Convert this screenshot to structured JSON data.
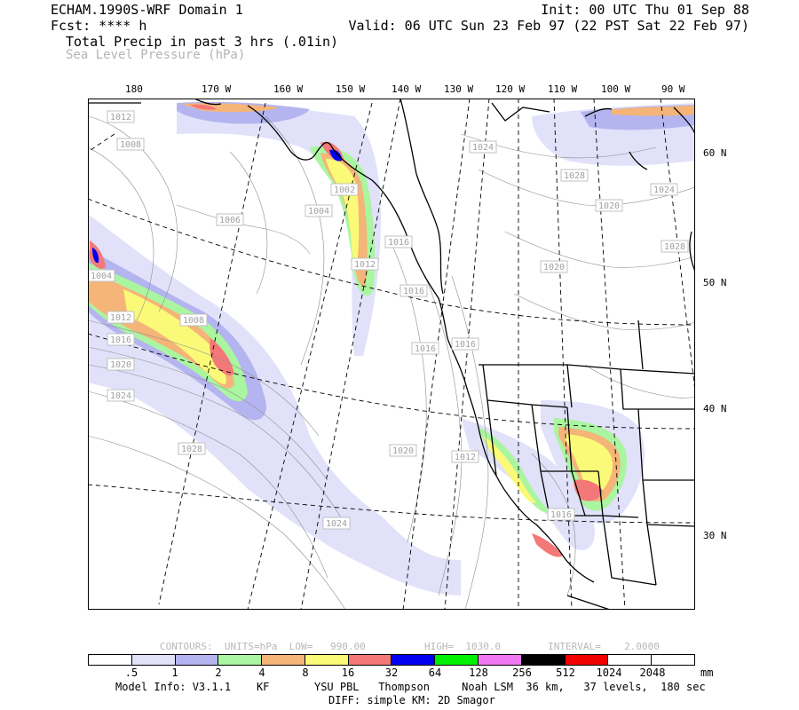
{
  "header": {
    "title": "ECHAM.1990S-WRF Domain 1",
    "fcst": "Fcst: **** h",
    "init": "Init: 00 UTC Thu 01 Sep 88",
    "valid": "Valid: 06 UTC Sun 23 Feb 97 (22 PST Sat 22 Feb 97)",
    "field_primary": "Total Precip in past 3 hrs (.01in)",
    "field_secondary": "Sea Level Pressure (hPa)"
  },
  "map": {
    "longitude_labels": [
      "180",
      "170 W",
      "160 W",
      "150 W",
      "140 W",
      "130 W",
      "120 W",
      "110 W",
      "100 W",
      "90 W"
    ],
    "latitude_labels": [
      "60 N",
      "50 N",
      "40 N",
      "30 N"
    ],
    "isobar_labels": [
      "1012",
      "1008",
      "1006",
      "1004",
      "1002",
      "1024",
      "1028",
      "1020",
      "1024",
      "1028",
      "1016",
      "1012",
      "1004",
      "1020",
      "1016",
      "1012",
      "1008",
      "1016",
      "1020",
      "1024",
      "1028",
      "1016",
      "1020",
      "1012",
      "1024",
      "1016",
      "1016"
    ],
    "precip_colors": {
      "light_lavender": "#e1e1fa",
      "lavender": "#b4b4f0",
      "light_green": "#aaf5a0",
      "peach": "#f5b478",
      "yellow": "#fafa78",
      "salmon": "#f57878",
      "blue": "#0000f0",
      "green": "#00f000",
      "red": "#f00000"
    }
  },
  "contours": {
    "text": "CONTOURS:  UNITS=hPa  LOW=   990.00          HIGH=  1030.0        INTERVAL=    2.0000"
  },
  "colorbar": {
    "colors": [
      "#ffffff",
      "#e1e1fa",
      "#b4b4f0",
      "#aaf5a0",
      "#f5b478",
      "#fafa78",
      "#f57878",
      "#0000f0",
      "#00f000",
      "#f078f0",
      "#000000",
      "#f00000",
      "#ffffff",
      "#ffffff"
    ],
    "labels": [
      ".5",
      "1",
      "2",
      "4",
      "8",
      "16",
      "32",
      "64",
      "128",
      "256",
      "512",
      "1024",
      "2048"
    ],
    "unit": "mm"
  },
  "footer": {
    "line1": "Model Info: V3.1.1    KF       YSU PBL   Thompson     Noah LSM  36 km,   37 levels,  180 sec",
    "line2": "DIFF: simple KM: 2D Smagor"
  }
}
